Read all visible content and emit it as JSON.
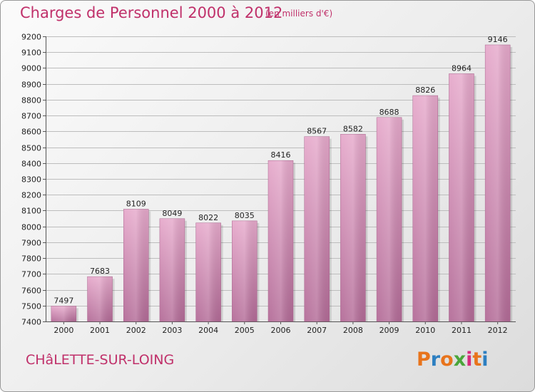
{
  "chart_title": "Charges de Personnel 2000 à 2012",
  "chart_subtitle": "(en milliers d'€)",
  "commune": "CHâLETTE-SUR-LOING",
  "brand": {
    "letters": [
      "P",
      "r",
      "o",
      "x",
      "i",
      "t",
      "i"
    ],
    "colors": [
      "#e8741c",
      "#2d7fc1",
      "#e8741c",
      "#4aa53a",
      "#d62b7b",
      "#e8741c",
      "#2d7fc1"
    ]
  },
  "chart_data": {
    "type": "bar",
    "title": "Charges de Personnel 2000 à 2012",
    "subtitle": "(en milliers d'€)",
    "categories": [
      "2000",
      "2001",
      "2002",
      "2003",
      "2004",
      "2005",
      "2006",
      "2007",
      "2008",
      "2009",
      "2010",
      "2011",
      "2012"
    ],
    "values": [
      7497,
      7683,
      8109,
      8049,
      8022,
      8035,
      8416,
      8567,
      8582,
      8688,
      8826,
      8964,
      9146
    ],
    "ylim": [
      7400,
      9200
    ],
    "yticks": [
      7400,
      7500,
      7600,
      7700,
      7800,
      7900,
      8000,
      8100,
      8200,
      8300,
      8400,
      8500,
      8600,
      8700,
      8800,
      8900,
      9000,
      9100,
      9200
    ],
    "grid": true,
    "bar_color": "#d98ab4",
    "xlabel": "",
    "ylabel": ""
  }
}
